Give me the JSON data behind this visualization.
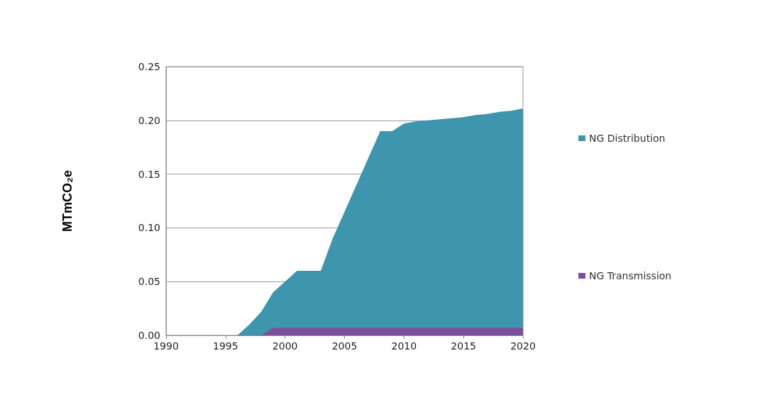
{
  "chart_data": {
    "type": "area",
    "stacked": true,
    "ylabel": "MTmCO₂e",
    "x": [
      1990,
      1991,
      1992,
      1993,
      1994,
      1995,
      1996,
      1997,
      1998,
      1999,
      2000,
      2001,
      2002,
      2003,
      2004,
      2005,
      2006,
      2007,
      2008,
      2009,
      2010,
      2011,
      2012,
      2013,
      2014,
      2015,
      2016,
      2017,
      2018,
      2019,
      2020
    ],
    "series": [
      {
        "name": "NG Transmission",
        "color": "#7d4e9e",
        "values": [
          0,
          0,
          0,
          0,
          0,
          0,
          0,
          0,
          0,
          0.007,
          0.007,
          0.007,
          0.007,
          0.007,
          0.007,
          0.007,
          0.007,
          0.007,
          0.007,
          0.007,
          0.007,
          0.007,
          0.007,
          0.007,
          0.007,
          0.007,
          0.007,
          0.007,
          0.007,
          0.007,
          0.007
        ]
      },
      {
        "name": "NG Distribution",
        "color": "#3d96ad",
        "values": [
          0,
          0,
          0,
          0,
          0,
          0,
          0,
          0.01,
          0.022,
          0.033,
          0.043,
          0.053,
          0.053,
          0.053,
          0.083,
          0.108,
          0.133,
          0.158,
          0.183,
          0.183,
          0.19,
          0.192,
          0.193,
          0.194,
          0.195,
          0.196,
          0.198,
          0.199,
          0.201,
          0.202,
          0.204
        ]
      }
    ],
    "xlim": [
      1990,
      2020
    ],
    "xticks": [
      1990,
      1995,
      2000,
      2005,
      2010,
      2015,
      2020
    ],
    "ylim": [
      0,
      0.25
    ],
    "yticks": [
      {
        "value": 0,
        "label": "0.00"
      },
      0.05,
      {
        "value": 0.1,
        "label": "0.10"
      },
      0.15,
      {
        "value": 0.2,
        "label": "0.20"
      },
      0.25
    ],
    "grid": "y",
    "legend": "right"
  }
}
